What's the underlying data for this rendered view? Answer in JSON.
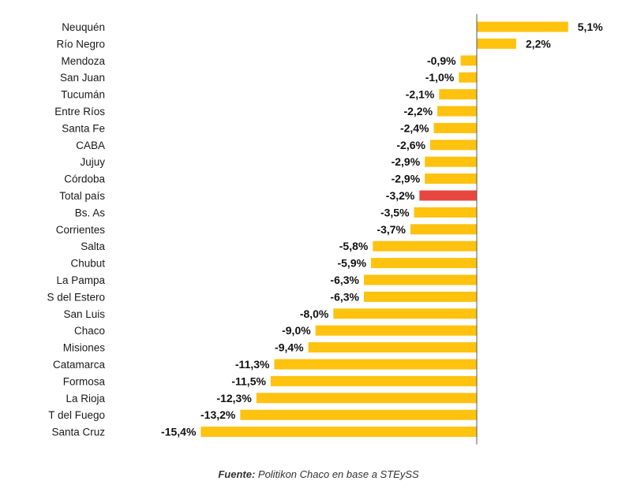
{
  "chart_data": {
    "type": "bar",
    "orientation": "horizontal",
    "title": "",
    "xlabel": "",
    "ylabel": "",
    "xlim": [
      -16,
      5.6
    ],
    "grid": false,
    "legend": "none",
    "categories": [
      "Neuquén",
      "Río Negro",
      "Mendoza",
      "San Juan",
      "Tucumán",
      "Entre Ríos",
      "Santa Fe",
      "CABA",
      "Jujuy",
      "Córdoba",
      "Total país",
      "Bs. As",
      "Corrientes",
      "Salta",
      "Chubut",
      "La Pampa",
      "S del Estero",
      "San Luis",
      "Chaco",
      "Misiones",
      "Catamarca",
      "Formosa",
      "La Rioja",
      "T del Fuego",
      "Santa Cruz"
    ],
    "values": [
      5.1,
      2.2,
      -0.9,
      -1.0,
      -2.1,
      -2.2,
      -2.4,
      -2.6,
      -2.9,
      -2.9,
      -3.2,
      -3.5,
      -3.7,
      -5.8,
      -5.9,
      -6.3,
      -6.3,
      -8.0,
      -9.0,
      -9.4,
      -11.3,
      -11.5,
      -12.3,
      -13.2,
      -15.4
    ],
    "value_labels": [
      "5,1%",
      "2,2%",
      "-0,9%",
      "-1,0%",
      "-2,1%",
      "-2,2%",
      "-2,4%",
      "-2,6%",
      "-2,9%",
      "-2,9%",
      "-3,2%",
      "-3,5%",
      "-3,7%",
      "-5,8%",
      "-5,9%",
      "-6,3%",
      "-6,3%",
      "-8,0%",
      "-9,0%",
      "-9,4%",
      "-11,3%",
      "-11,5%",
      "-12,3%",
      "-13,2%",
      "-15,4%"
    ],
    "highlight_category": "Total país"
  },
  "colors": {
    "bar": "#FFC20E",
    "highlight": "#E8473F",
    "axis": "#555555"
  },
  "source": {
    "prefix": "Fuente:",
    "text": " Politikon Chaco en base a STEySS"
  }
}
